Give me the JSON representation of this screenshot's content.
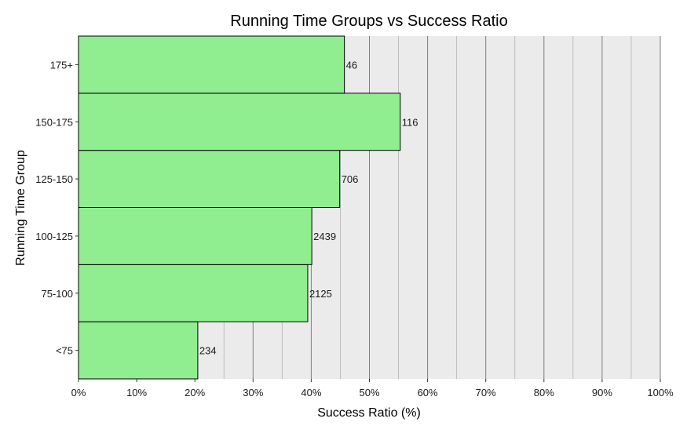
{
  "chart_data": {
    "type": "bar",
    "orientation": "horizontal",
    "title": "Running Time Groups vs Success Ratio",
    "xlabel": "Success Ratio (%)",
    "ylabel": "Running Time Group",
    "categories": [
      "<75",
      "75-100",
      "100-125",
      "125-150",
      "150-175",
      "175+"
    ],
    "values": [
      20.5,
      39.4,
      40.1,
      44.9,
      55.3,
      45.7
    ],
    "data_labels": [
      "234",
      "2125",
      "2439",
      "706",
      "116",
      "46"
    ],
    "xlim": [
      0,
      100
    ],
    "x_ticks": [
      0,
      10,
      20,
      30,
      40,
      50,
      60,
      70,
      80,
      90,
      100
    ],
    "x_tick_labels": [
      "0%",
      "10%",
      "20%",
      "30%",
      "40%",
      "50%",
      "60%",
      "70%",
      "80%",
      "90%",
      "100%"
    ],
    "grid": true,
    "legend": "none",
    "colors": {
      "bar_fill": "#90EE90",
      "bar_stroke": "#000000",
      "panel_bg": "#EBEBEB",
      "grid_major": "#7F7F7F",
      "grid_minor": "#B3B3B3"
    }
  }
}
